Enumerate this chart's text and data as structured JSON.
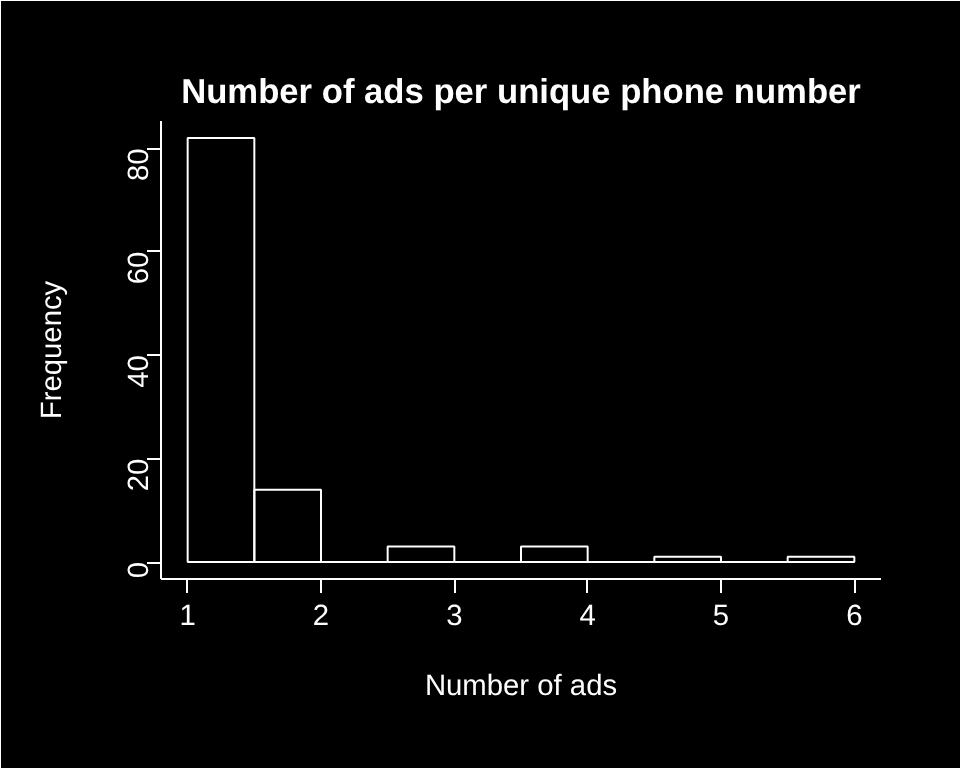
{
  "chart_data": {
    "type": "histogram",
    "title": "Number of ads per unique phone number",
    "xlabel": "Number of ads",
    "ylabel": "Frequency",
    "bins": [
      1,
      1.5,
      2,
      2.5,
      3,
      3.5,
      4,
      4.5,
      5,
      5.5,
      6
    ],
    "values": [
      82,
      14,
      0,
      3,
      0,
      3,
      0,
      1,
      0,
      1
    ],
    "color": "#ffffff",
    "xlim": [
      0.8,
      6.2
    ],
    "ylim": [
      -3.28,
      85.28
    ],
    "xticks": [
      1,
      2,
      3,
      4,
      5,
      6
    ],
    "yticks": [
      0,
      20,
      40,
      60,
      80
    ],
    "grid": false
  }
}
